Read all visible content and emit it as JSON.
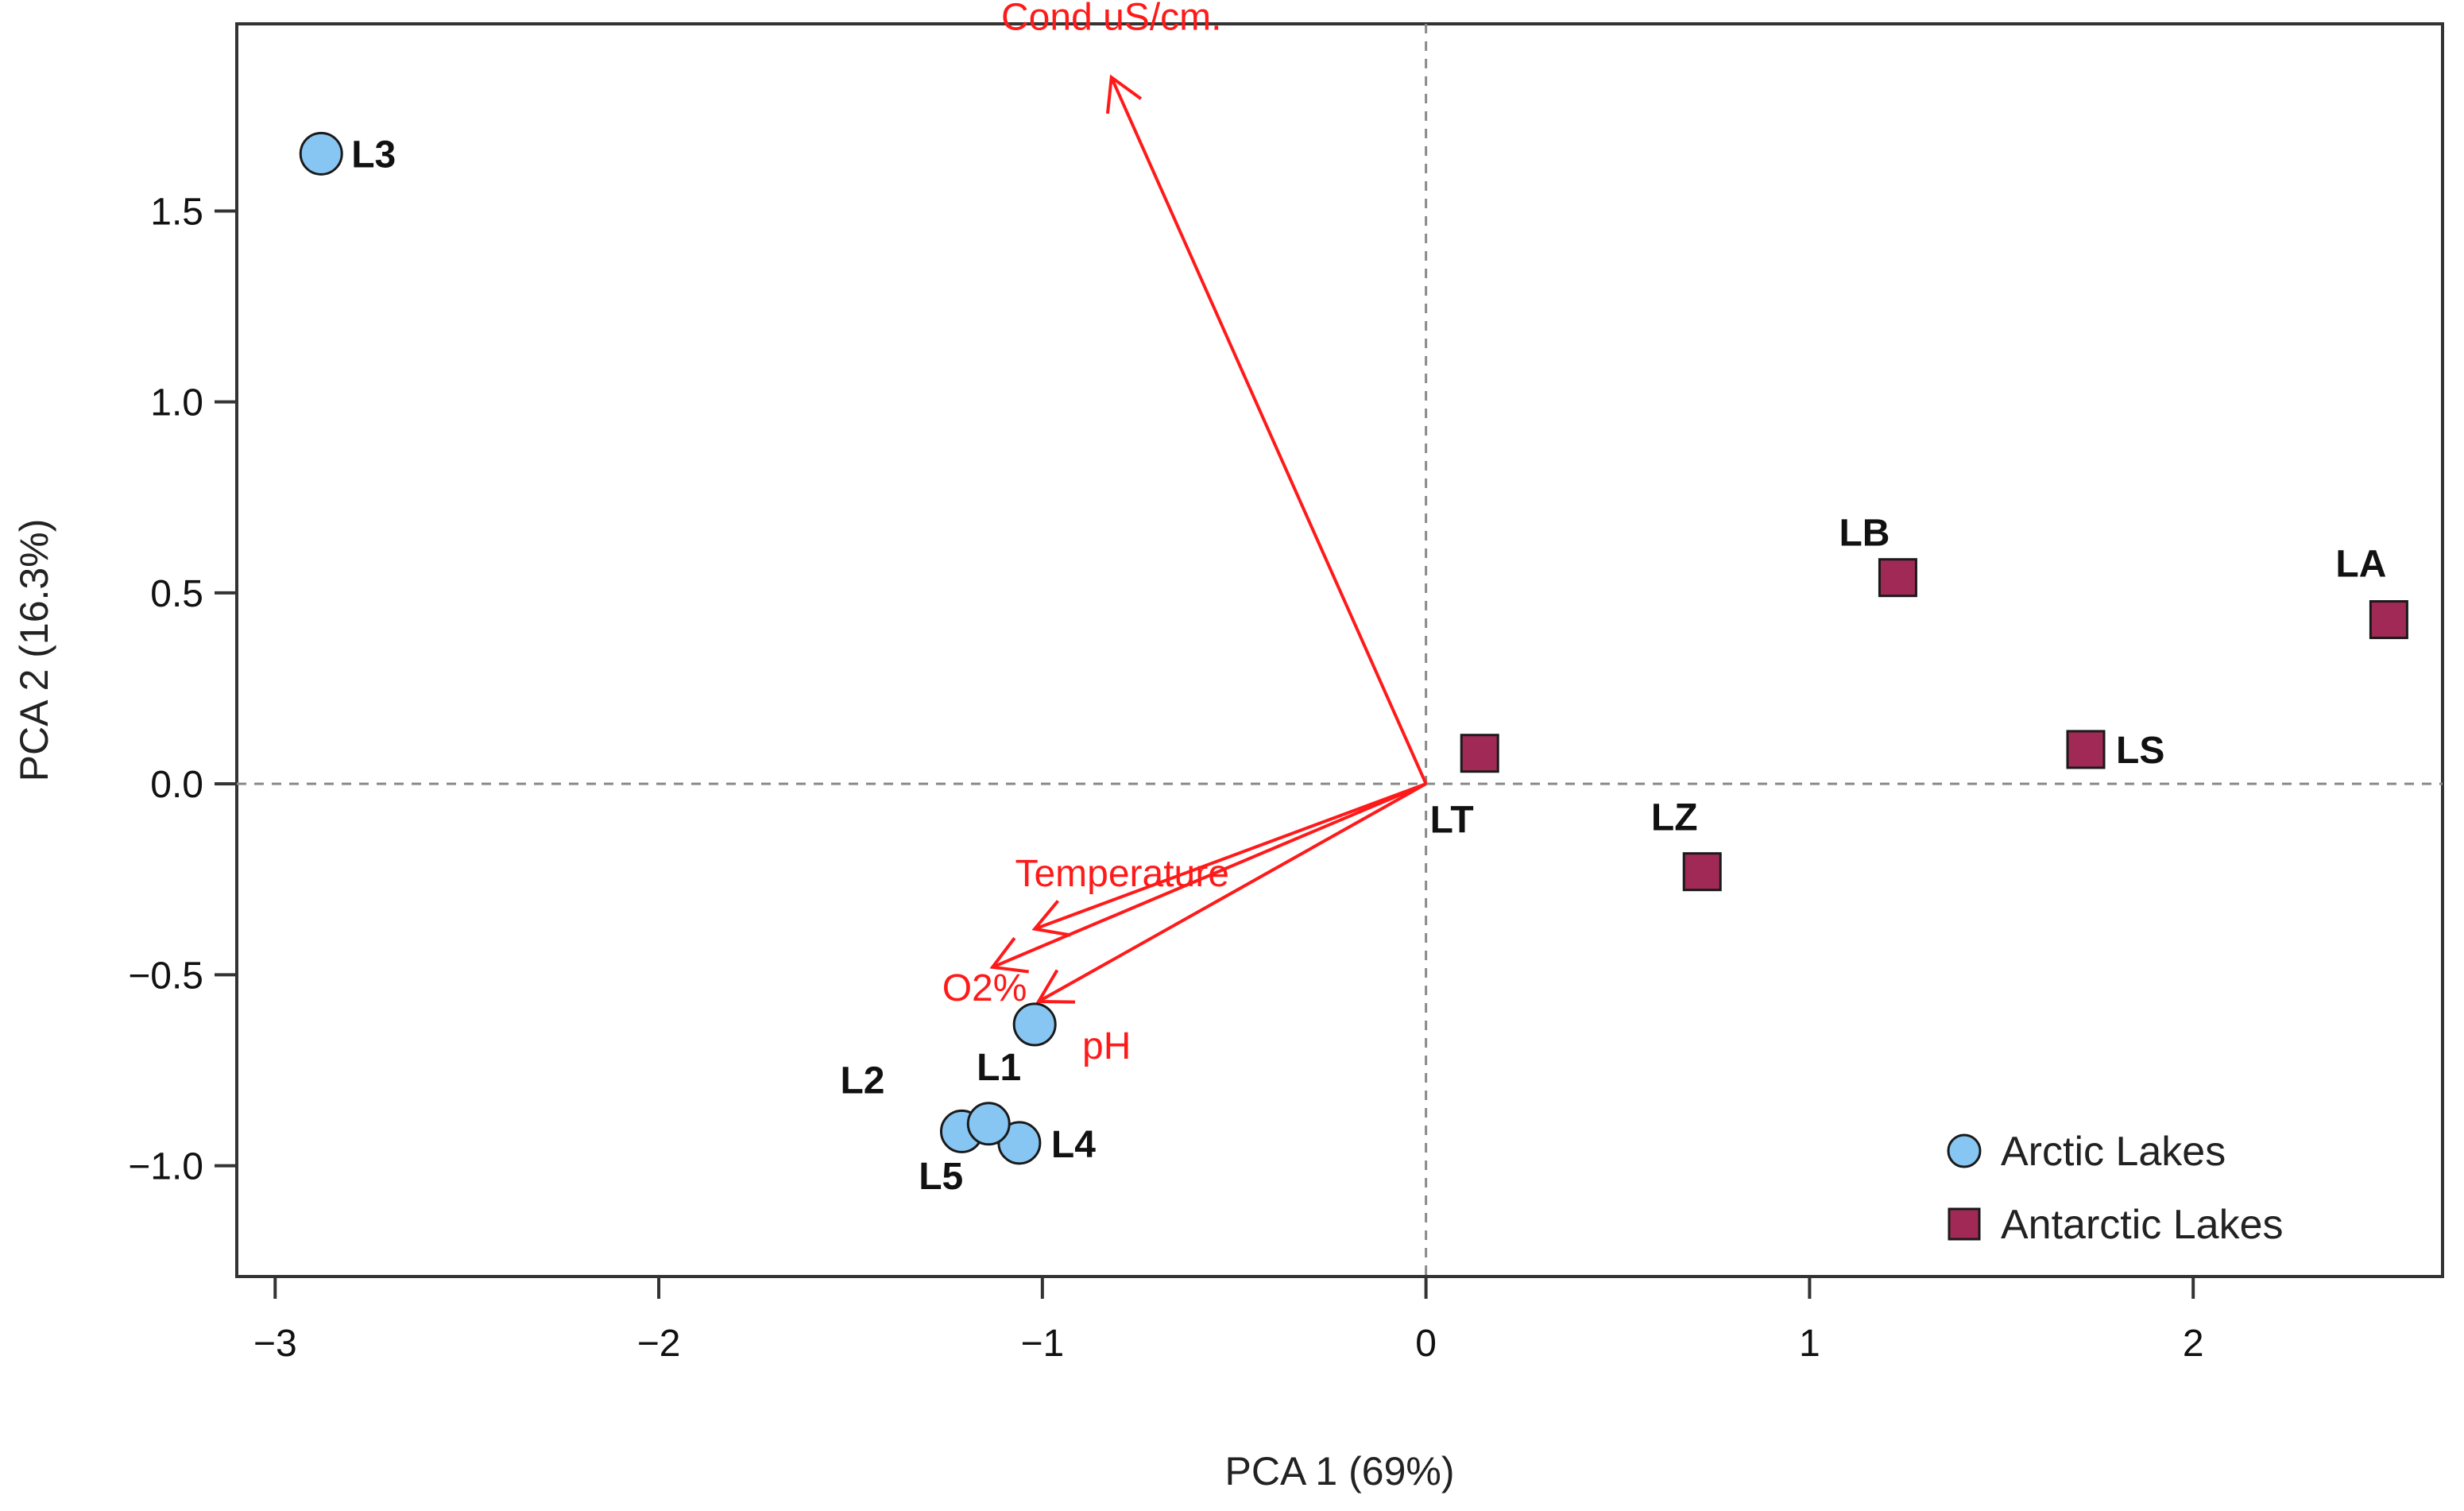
{
  "chart_data": {
    "type": "scatter",
    "title": "",
    "xlabel": "PCA 1 (69%)",
    "ylabel": "PCA 2 (16.3%)",
    "xlim": [
      -3.1,
      2.65
    ],
    "ylim": [
      -1.29,
      1.99
    ],
    "xticks": [
      -3,
      -2,
      -1,
      0,
      1,
      2
    ],
    "xtick_labels": [
      "−3",
      "−2",
      "−1",
      "0",
      "1",
      "2"
    ],
    "yticks": [
      -1.0,
      -0.5,
      0.0,
      0.5,
      1.0,
      1.5
    ],
    "ytick_labels": [
      "−1.0",
      "−0.5",
      "0.0",
      "0.5",
      "1.0",
      "1.5"
    ],
    "reference_lines": {
      "x": 0,
      "y": 0,
      "style": "dashed"
    },
    "colors": {
      "arctic": "#87c6f2",
      "antarctic": "#a02a55",
      "arrows": "#ff1a1a",
      "marker_edge": "#1a1a1a"
    },
    "series": [
      {
        "name": "Arctic Lakes",
        "marker": "circle",
        "points": [
          {
            "label": "L3",
            "x": -2.88,
            "y": 1.65,
            "label_anchor": "right"
          },
          {
            "label": "L1",
            "x": -1.02,
            "y": -0.63,
            "label_anchor": "below-left"
          },
          {
            "label": "L2",
            "x": -1.21,
            "y": -0.91,
            "label_anchor": "above-left"
          },
          {
            "label": "L4",
            "x": -1.06,
            "y": -0.94,
            "label_anchor": "right"
          },
          {
            "label": "L5",
            "x": -1.14,
            "y": -0.89,
            "label_anchor": "below-left"
          }
        ]
      },
      {
        "name": "Antarctic Lakes",
        "marker": "square",
        "points": [
          {
            "label": "LT",
            "x": 0.14,
            "y": 0.08,
            "label_anchor": "below-left"
          },
          {
            "label": "LZ",
            "x": 0.72,
            "y": -0.23,
            "label_anchor": "above-left"
          },
          {
            "label": "LB",
            "x": 1.23,
            "y": 0.54,
            "label_anchor": "above-left"
          },
          {
            "label": "LS",
            "x": 1.72,
            "y": 0.09,
            "label_anchor": "right"
          },
          {
            "label": "LA",
            "x": 2.51,
            "y": 0.43,
            "label_anchor": "above-left"
          }
        ]
      }
    ],
    "loadings": [
      {
        "name": "Cond uS/cm.",
        "x": -0.82,
        "y": 1.85
      },
      {
        "name": "Temperature",
        "x": -1.02,
        "y": -0.38
      },
      {
        "name": "O2%",
        "x": -1.13,
        "y": -0.48
      },
      {
        "name": "pH",
        "x": -1.01,
        "y": -0.57
      }
    ],
    "legend": {
      "position": "bottom-right",
      "entries": [
        "Arctic Lakes",
        "Antarctic Lakes"
      ]
    }
  }
}
